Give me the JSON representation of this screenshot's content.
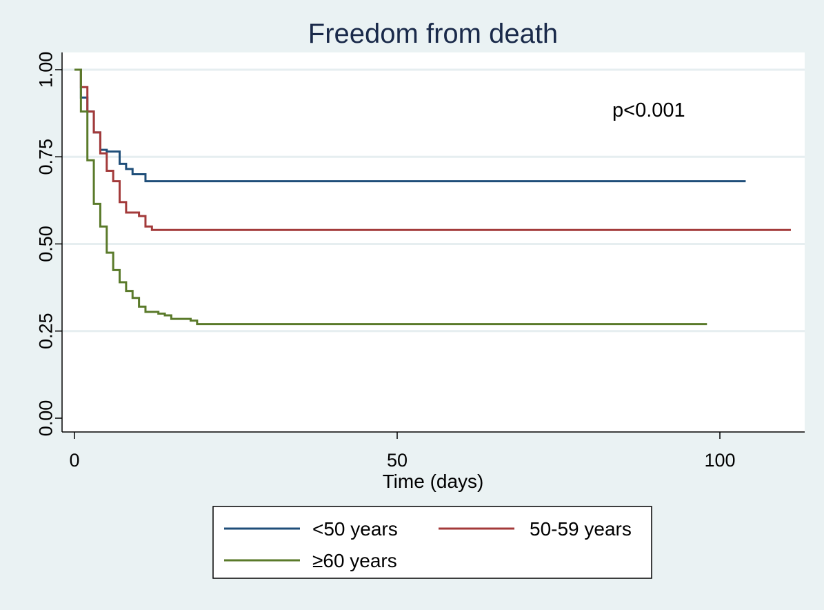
{
  "chart_data": {
    "type": "line",
    "title": "Freedom from death",
    "xlabel": "Time (days)",
    "ylabel": "",
    "xlim": [
      0,
      112
    ],
    "ylim": [
      0,
      1
    ],
    "x_ticks": [
      0,
      50,
      100
    ],
    "x_tick_labels": [
      "0",
      "50",
      "100"
    ],
    "y_ticks": [
      0,
      0.25,
      0.5,
      0.75,
      1
    ],
    "y_tick_labels": [
      "0.00",
      "0.25",
      "0.50",
      "0.75",
      "1.00"
    ],
    "grid": "horizontal",
    "annotation": "p<0.001",
    "legend_position": "bottom",
    "series": [
      {
        "name": "<50 years",
        "color": "#1f4e79",
        "step_points": [
          [
            0,
            1.0
          ],
          [
            1,
            0.92
          ],
          [
            2,
            0.88
          ],
          [
            3,
            0.82
          ],
          [
            4,
            0.77
          ],
          [
            5,
            0.765
          ],
          [
            7,
            0.73
          ],
          [
            8,
            0.715
          ],
          [
            9,
            0.7
          ],
          [
            11,
            0.68
          ],
          [
            104,
            0.68
          ]
        ]
      },
      {
        "name": "50-59 years",
        "color": "#a33a3a",
        "step_points": [
          [
            0,
            1.0
          ],
          [
            1,
            0.95
          ],
          [
            2,
            0.88
          ],
          [
            3,
            0.82
          ],
          [
            4,
            0.76
          ],
          [
            5,
            0.71
          ],
          [
            6,
            0.68
          ],
          [
            7,
            0.62
          ],
          [
            8,
            0.59
          ],
          [
            10,
            0.58
          ],
          [
            11,
            0.55
          ],
          [
            12,
            0.54
          ],
          [
            111,
            0.54
          ]
        ]
      },
      {
        "name": "≥60 years",
        "color": "#5a7a2a",
        "step_points": [
          [
            0,
            1.0
          ],
          [
            1,
            0.88
          ],
          [
            2,
            0.74
          ],
          [
            3,
            0.615
          ],
          [
            4,
            0.55
          ],
          [
            5,
            0.475
          ],
          [
            6,
            0.425
          ],
          [
            7,
            0.39
          ],
          [
            8,
            0.365
          ],
          [
            9,
            0.345
          ],
          [
            10,
            0.32
          ],
          [
            11,
            0.305
          ],
          [
            13,
            0.3
          ],
          [
            14,
            0.295
          ],
          [
            15,
            0.285
          ],
          [
            18,
            0.28
          ],
          [
            19,
            0.27
          ],
          [
            98,
            0.27
          ]
        ]
      }
    ]
  }
}
